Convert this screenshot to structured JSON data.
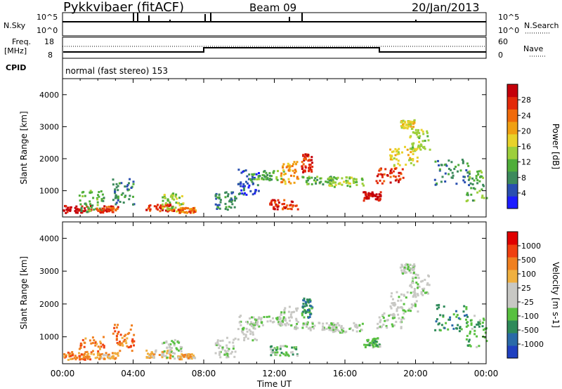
{
  "header": {
    "site": "Pykkvibaer (fitACF)",
    "beam": "Beam 09",
    "date": "20/Jan/2013"
  },
  "status_panels": {
    "nsky_label": "N.Sky",
    "nsearch_label": "N.Search",
    "nsky_ticks": [
      "10^5",
      "10^0"
    ],
    "nsearch_ticks": [
      "10^5",
      "10^0"
    ],
    "freq_label_line1": "Freq.",
    "freq_label_line2": "[MHz]",
    "freq_ticks": [
      "18",
      "8"
    ],
    "nave_label": "Nave",
    "nave_ticks": [
      "60",
      "0"
    ],
    "cpid_label": "CPID",
    "cpid_text": "normal (fast stereo) 153"
  },
  "chart_data": [
    {
      "type": "heatmap",
      "name": "power-panel",
      "ylabel": "Slant Range [km]",
      "yticks": [
        1000,
        2000,
        3000,
        4000
      ],
      "ylim": [
        180,
        4500
      ],
      "xlim_hours": [
        0,
        24
      ],
      "colorbar": {
        "label": "Power [dB]",
        "ticks": [
          "4",
          "8",
          "12",
          "16",
          "20",
          "24",
          "28"
        ],
        "colors": [
          "#1c1cff",
          "#2a4fb0",
          "#3d8a5c",
          "#4fae3a",
          "#9dcf3b",
          "#e8d22a",
          "#f0a012",
          "#f06a0a",
          "#e32a0a",
          "#c4000a"
        ]
      }
    },
    {
      "type": "heatmap",
      "name": "velocity-panel",
      "ylabel": "Slant Range [km]",
      "yticks": [
        1000,
        2000,
        3000,
        4000
      ],
      "ylim": [
        180,
        4500
      ],
      "xlim_hours": [
        0,
        24
      ],
      "colorbar": {
        "label": "Velocity [m s-1]",
        "ticks": [
          "1000",
          "500",
          "100",
          "25",
          "-25",
          "-100",
          "-500",
          "-1000"
        ],
        "colors": [
          "#2040c0",
          "#2a6aa8",
          "#2e8a5a",
          "#58c040",
          "#c8c8c4",
          "#c8c8c4",
          "#f0b040",
          "#f08020",
          "#f04010",
          "#e00000"
        ]
      }
    }
  ],
  "xaxis": {
    "ticks": [
      "00:00",
      "04:00",
      "08:00",
      "12:00",
      "16:00",
      "20:00",
      "00:00"
    ],
    "label": "Time UT"
  }
}
